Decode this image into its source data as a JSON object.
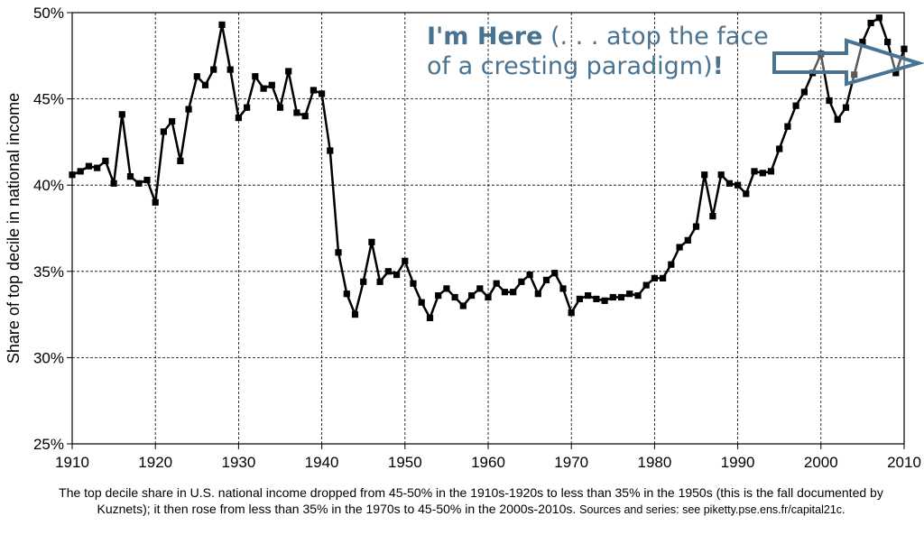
{
  "chart_data": {
    "type": "line",
    "title": "",
    "xlabel": "",
    "ylabel": "Share of top decile in national income",
    "xlim": [
      1910,
      2010
    ],
    "ylim": [
      25,
      50
    ],
    "x_ticks": [
      1910,
      1920,
      1930,
      1940,
      1950,
      1960,
      1970,
      1980,
      1990,
      2000,
      2010
    ],
    "x_tick_labels": [
      "1910",
      "1920",
      "1930",
      "1940",
      "1950",
      "1960",
      "1970",
      "1980",
      "1990",
      "2000",
      "2010"
    ],
    "y_ticks": [
      25,
      30,
      35,
      40,
      45,
      50
    ],
    "y_tick_labels": [
      "25%",
      "30%",
      "35%",
      "40%",
      "45%",
      "50%"
    ],
    "grid": true,
    "series": [
      {
        "name": "",
        "color": "#000000",
        "marker": "square",
        "points": [
          [
            1910,
            40.6
          ],
          [
            1911,
            40.8
          ],
          [
            1912,
            41.1
          ],
          [
            1913,
            41.0
          ],
          [
            1914,
            41.4
          ],
          [
            1915,
            40.1
          ],
          [
            1916,
            44.1
          ],
          [
            1917,
            40.5
          ],
          [
            1918,
            40.1
          ],
          [
            1919,
            40.3
          ],
          [
            1920,
            39.0
          ],
          [
            1921,
            43.1
          ],
          [
            1922,
            43.7
          ],
          [
            1923,
            41.4
          ],
          [
            1924,
            44.4
          ],
          [
            1925,
            46.3
          ],
          [
            1926,
            45.8
          ],
          [
            1927,
            46.7
          ],
          [
            1928,
            49.3
          ],
          [
            1929,
            46.7
          ],
          [
            1930,
            43.9
          ],
          [
            1931,
            44.5
          ],
          [
            1932,
            46.3
          ],
          [
            1933,
            45.6
          ],
          [
            1934,
            45.8
          ],
          [
            1935,
            44.5
          ],
          [
            1936,
            46.6
          ],
          [
            1937,
            44.2
          ],
          [
            1938,
            44.0
          ],
          [
            1939,
            45.5
          ],
          [
            1940,
            45.3
          ],
          [
            1941,
            42.0
          ],
          [
            1942,
            36.1
          ],
          [
            1943,
            33.7
          ],
          [
            1944,
            32.5
          ],
          [
            1945,
            34.4
          ],
          [
            1946,
            36.7
          ],
          [
            1947,
            34.4
          ],
          [
            1948,
            35.0
          ],
          [
            1949,
            34.8
          ],
          [
            1950,
            35.6
          ],
          [
            1951,
            34.3
          ],
          [
            1952,
            33.2
          ],
          [
            1953,
            32.3
          ],
          [
            1954,
            33.6
          ],
          [
            1955,
            34.0
          ],
          [
            1956,
            33.5
          ],
          [
            1957,
            33.0
          ],
          [
            1958,
            33.6
          ],
          [
            1959,
            34.0
          ],
          [
            1960,
            33.5
          ],
          [
            1961,
            34.3
          ],
          [
            1962,
            33.8
          ],
          [
            1963,
            33.8
          ],
          [
            1964,
            34.4
          ],
          [
            1965,
            34.8
          ],
          [
            1966,
            33.7
          ],
          [
            1967,
            34.5
          ],
          [
            1968,
            34.9
          ],
          [
            1969,
            34.0
          ],
          [
            1970,
            32.6
          ],
          [
            1971,
            33.4
          ],
          [
            1972,
            33.6
          ],
          [
            1973,
            33.4
          ],
          [
            1974,
            33.3
          ],
          [
            1975,
            33.5
          ],
          [
            1976,
            33.5
          ],
          [
            1977,
            33.7
          ],
          [
            1978,
            33.6
          ],
          [
            1979,
            34.2
          ],
          [
            1980,
            34.6
          ],
          [
            1981,
            34.6
          ],
          [
            1982,
            35.4
          ],
          [
            1983,
            36.4
          ],
          [
            1984,
            36.8
          ],
          [
            1985,
            37.6
          ],
          [
            1986,
            40.6
          ],
          [
            1987,
            38.2
          ],
          [
            1988,
            40.6
          ],
          [
            1989,
            40.1
          ],
          [
            1990,
            40.0
          ],
          [
            1991,
            39.5
          ],
          [
            1992,
            40.8
          ],
          [
            1993,
            40.7
          ],
          [
            1994,
            40.8
          ],
          [
            1995,
            42.1
          ],
          [
            1996,
            43.4
          ],
          [
            1997,
            44.6
          ],
          [
            1998,
            45.4
          ],
          [
            1999,
            46.5
          ],
          [
            2000,
            47.6
          ],
          [
            2001,
            44.9
          ],
          [
            2002,
            43.8
          ],
          [
            2003,
            44.5
          ],
          [
            2004,
            46.4
          ],
          [
            2005,
            48.3
          ],
          [
            2006,
            49.4
          ],
          [
            2007,
            49.7
          ],
          [
            2008,
            48.3
          ],
          [
            2009,
            46.5
          ],
          [
            2010,
            47.9
          ]
        ]
      }
    ]
  },
  "annotation": {
    "bold": "I'm Here",
    "line1_rest": " (. . . atop the face",
    "line2": "of a cresting paradigm)",
    "line2_bang": "!",
    "color": "#4a7391",
    "arrow_icon": "right-arrow-icon"
  },
  "caption": {
    "main": "The top decile share in U.S. national income dropped from 45-50% in the 1910s-1920s to less than 35% in the 1950s (this is the fall documented by Kuznets); it then rose from less than 35% in the 1970s to 45-50% in the 2000s-2010s.",
    "sources": "Sources and series: see piketty.pse.ens.fr/capital21c."
  }
}
